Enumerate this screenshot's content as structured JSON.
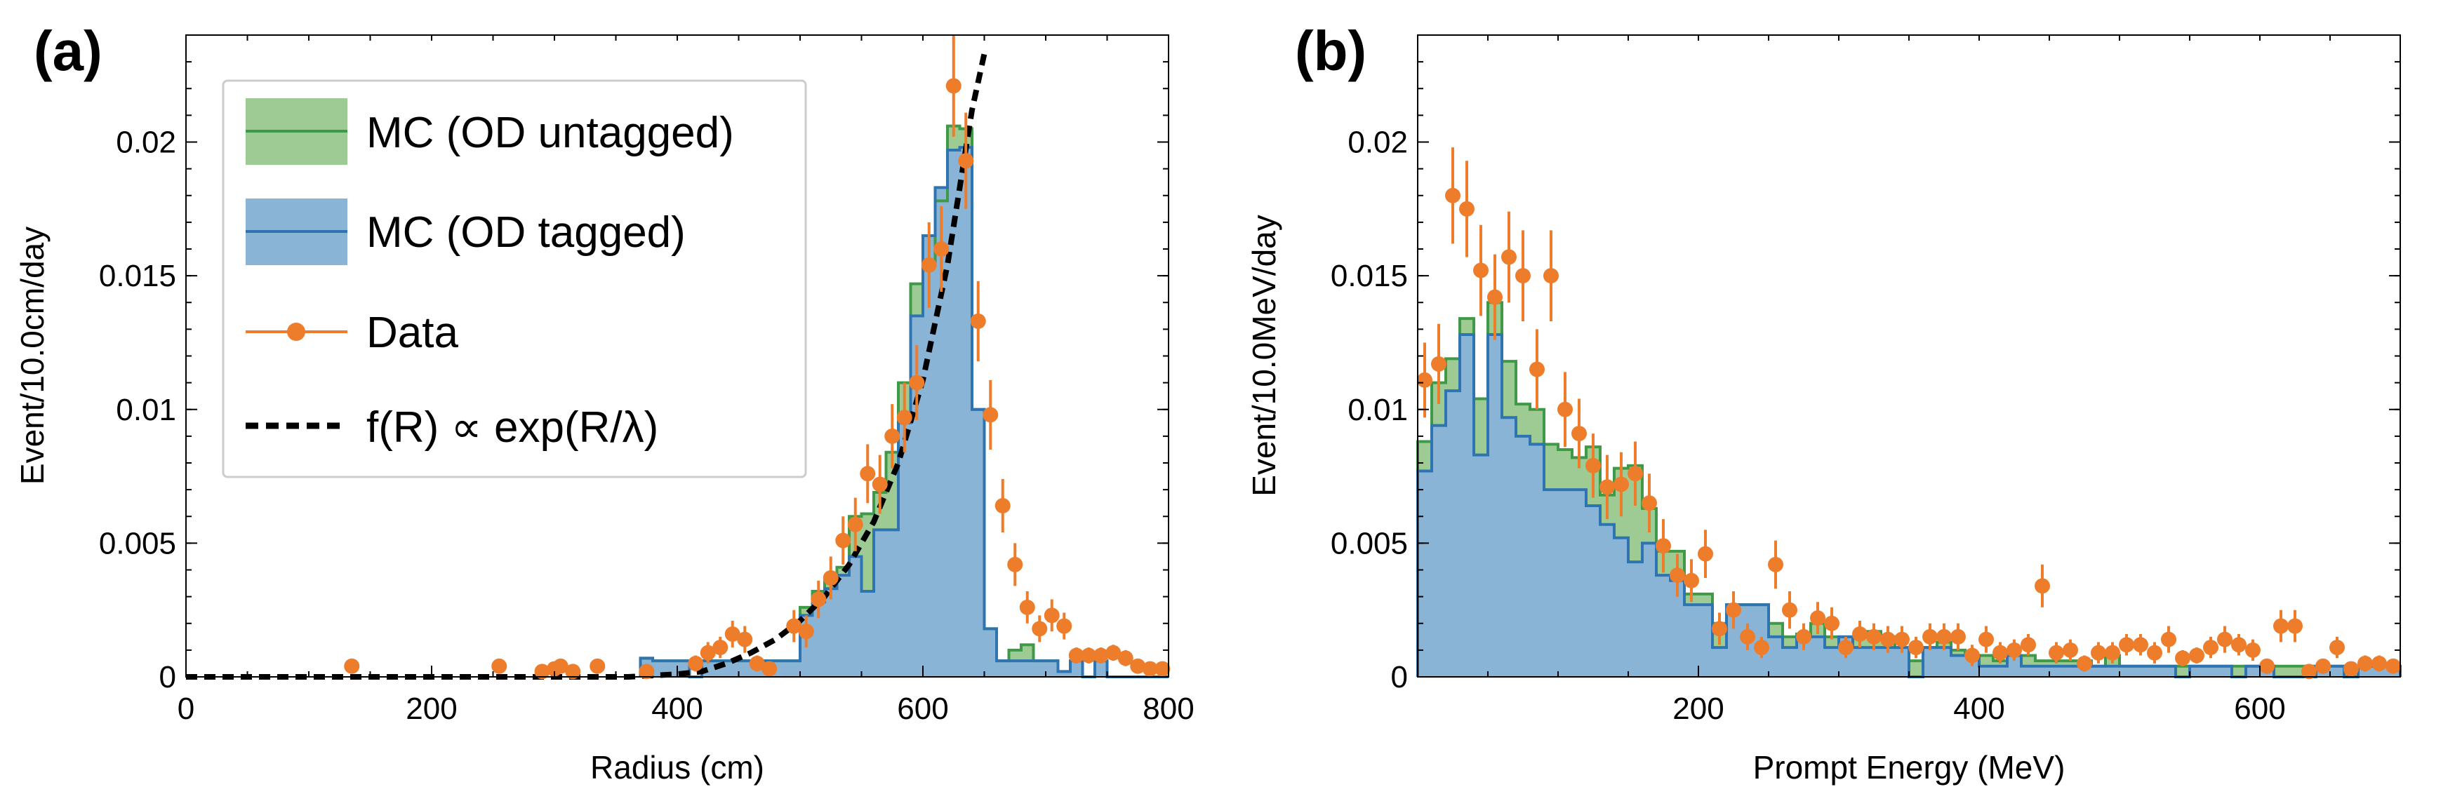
{
  "colors": {
    "untagged_fill": "#9ecb94",
    "untagged_edge": "#3e9a47",
    "tagged_fill": "#8ab4d6",
    "tagged_edge": "#2e74b0",
    "data": "#ee7d2b",
    "fit": "#000000"
  },
  "chart_data": [
    {
      "type": "histogram",
      "panel_label": "(a)",
      "xlabel": "Radius (cm)",
      "ylabel": "Event/10.0cm/day",
      "xlim": [
        0,
        800
      ],
      "ylim": [
        0,
        0.024
      ],
      "xticks": [
        0,
        200,
        400,
        600,
        800
      ],
      "xtick_labels": [
        "0",
        "200",
        "400",
        "600",
        "800"
      ],
      "yticks": [
        0,
        0.005,
        0.01,
        0.015,
        0.02
      ],
      "ytick_labels": [
        "0",
        "0.005",
        "0.01",
        "0.015",
        "0.02"
      ],
      "legend": {
        "location": "upper-left",
        "entries": [
          "MC (OD untagged)",
          "MC (OD tagged)",
          "Data",
          "f(R) ∝ exp(R/λ)"
        ]
      },
      "bin_width": 10,
      "bins": {
        "x_start": [
          370,
          380,
          390,
          400,
          410,
          420,
          430,
          440,
          450,
          460,
          470,
          480,
          490,
          500,
          510,
          520,
          530,
          540,
          550,
          560,
          570,
          580,
          590,
          600,
          610,
          620,
          630,
          640,
          650,
          660,
          670,
          680,
          690,
          700,
          710,
          720,
          730,
          740,
          750,
          760,
          770,
          780,
          790
        ],
        "tagged": [
          0.0007,
          0.0006,
          0.0006,
          0.0006,
          0,
          0.0006,
          0.0006,
          0.0006,
          0.0006,
          0.0006,
          0.0006,
          0.0006,
          0.0006,
          0.0023,
          0.0028,
          0.0033,
          0.0038,
          0.0045,
          0.0032,
          0.0055,
          0.0055,
          0.0095,
          0.0135,
          0.0165,
          0.0183,
          0.0197,
          0.0198,
          0.01,
          0.0018,
          0.0006,
          0.0006,
          0.0006,
          0.0006,
          0.0006,
          0.0002,
          0.0006,
          0,
          0.0006,
          0,
          0,
          0,
          0,
          0
        ],
        "total": [
          0.0007,
          0.0006,
          0.0006,
          0.0006,
          0,
          0.0006,
          0.0006,
          0.0006,
          0.0006,
          0.0006,
          0.0006,
          0.0006,
          0.0006,
          0.0026,
          0.0032,
          0.0036,
          0.0041,
          0.006,
          0.0061,
          0.0069,
          0.0084,
          0.011,
          0.0147,
          0.0155,
          0.0178,
          0.0206,
          0.0205,
          0.01,
          0.0018,
          0.0006,
          0.001,
          0.0012,
          0.0006,
          0.0006,
          0.0002,
          0.0006,
          0,
          0.0006,
          0,
          0,
          0,
          0,
          0
        ]
      },
      "data_points": {
        "x": [
          135,
          255,
          290,
          300,
          305,
          315,
          335,
          375,
          415,
          425,
          435,
          445,
          455,
          465,
          475,
          495,
          505,
          515,
          525,
          535,
          545,
          555,
          565,
          575,
          585,
          595,
          605,
          615,
          625,
          635,
          645,
          655,
          665,
          675,
          685,
          695,
          705,
          715,
          725,
          735,
          745,
          755,
          765,
          775,
          785,
          795
        ],
        "y": [
          0.0004,
          0.0004,
          0.0002,
          0.0003,
          0.0004,
          0.0002,
          0.0004,
          0.0002,
          0.0005,
          0.0009,
          0.0011,
          0.0016,
          0.0014,
          0.0005,
          0.0003,
          0.0019,
          0.0017,
          0.0029,
          0.0037,
          0.0051,
          0.0057,
          0.0076,
          0.0072,
          0.009,
          0.0097,
          0.011,
          0.0154,
          0.016,
          0.0221,
          0.0193,
          0.0133,
          0.0098,
          0.0064,
          0.0042,
          0.0026,
          0.0018,
          0.0023,
          0.0019,
          0.0008,
          0.0008,
          0.0008,
          0.0009,
          0.0007,
          0.0004,
          0.0003,
          0.0003
        ],
        "err": [
          0.0002,
          0.0002,
          0.0002,
          0.0002,
          0.0002,
          0.0002,
          0.0002,
          0.0002,
          0.0003,
          0.0004,
          0.0004,
          0.0005,
          0.0005,
          0.0003,
          0.0002,
          0.0006,
          0.0006,
          0.0007,
          0.0008,
          0.0009,
          0.001,
          0.0011,
          0.0011,
          0.0012,
          0.0013,
          0.0014,
          0.0016,
          0.0016,
          0.0019,
          0.0018,
          0.0015,
          0.0013,
          0.001,
          0.0008,
          0.0006,
          0.0005,
          0.0006,
          0.0005,
          0.0003,
          0.0003,
          0.0003,
          0.0003,
          0.0003,
          0.0002,
          0.0002,
          0.0002
        ]
      },
      "fit_curve": {
        "label": "f(R) ∝ exp(R/λ)",
        "x": [
          0,
          100,
          200,
          300,
          360,
          400,
          420,
          440,
          460,
          480,
          500,
          520,
          540,
          560,
          580,
          600,
          620,
          640,
          650
        ],
        "y": [
          0,
          0,
          0,
          0,
          0,
          0.0001,
          0.0002,
          0.0005,
          0.0009,
          0.0014,
          0.0021,
          0.003,
          0.0042,
          0.0058,
          0.008,
          0.0111,
          0.0154,
          0.0212,
          0.0233
        ]
      }
    },
    {
      "type": "histogram",
      "panel_label": "(b)",
      "xlabel": "Prompt Energy (MeV)",
      "ylabel": "Event/10.0MeV/day",
      "xlim": [
        0,
        700
      ],
      "ylim": [
        0,
        0.024
      ],
      "xticks": [
        200,
        400,
        600
      ],
      "xtick_labels": [
        "200",
        "400",
        "600"
      ],
      "yticks": [
        0,
        0.005,
        0.01,
        0.015,
        0.02
      ],
      "ytick_labels": [
        "0",
        "0.005",
        "0.01",
        "0.015",
        "0.02"
      ],
      "bin_width": 10,
      "bins": {
        "tagged": [
          0.0077,
          0.0094,
          0.0107,
          0.0128,
          0.0083,
          0.0128,
          0.0097,
          0.009,
          0.0087,
          0.007,
          0.007,
          0.007,
          0.0064,
          0.0057,
          0.0052,
          0.0043,
          0.005,
          0.0038,
          0.0036,
          0.0027,
          0.0027,
          0.0011,
          0.0027,
          0.0027,
          0.0027,
          0.0015,
          0.0011,
          0.0015,
          0.0015,
          0.0011,
          0.0015,
          0.0011,
          0.0011,
          0.0011,
          0.0011,
          0.0,
          0.0011,
          0.0011,
          0.0008,
          0.0008,
          0.0004,
          0.0004,
          0.0008,
          0.0004,
          0.0004,
          0.0004,
          0.0004,
          0.0004,
          0.0004,
          0.0004,
          0.0004,
          0.0004,
          0.0004,
          0.0004,
          0.0,
          0.0004,
          0.0004,
          0.0004,
          0.0,
          0.0004,
          0.0004,
          0.0,
          0.0,
          0.0,
          0.0004,
          0.0004,
          0.0,
          0.0004,
          0.0004,
          0.0004
        ],
        "total": [
          0.0088,
          0.011,
          0.0119,
          0.0134,
          0.0104,
          0.014,
          0.0118,
          0.0102,
          0.01,
          0.0087,
          0.0085,
          0.0082,
          0.0086,
          0.0068,
          0.0078,
          0.0079,
          0.0063,
          0.0047,
          0.0047,
          0.0031,
          0.0031,
          0.002,
          0.0027,
          0.0027,
          0.0027,
          0.002,
          0.0015,
          0.0016,
          0.002,
          0.0015,
          0.0015,
          0.0015,
          0.0017,
          0.0015,
          0.0011,
          0.0006,
          0.0011,
          0.0013,
          0.001,
          0.0008,
          0.0008,
          0.0006,
          0.0008,
          0.0008,
          0.0006,
          0.0006,
          0.0006,
          0.0006,
          0.0004,
          0.0008,
          0.0004,
          0.0004,
          0.0004,
          0.0004,
          0.0004,
          0.0004,
          0.0004,
          0.0004,
          0.0004,
          0.0004,
          0.0004,
          0.0004,
          0.0004,
          0.0004,
          0.0004,
          0.0004,
          0.0004,
          0.0004,
          0.0004,
          0.0004
        ]
      },
      "data_points": {
        "x": [
          5,
          15,
          25,
          35,
          45,
          55,
          65,
          75,
          85,
          95,
          105,
          115,
          125,
          135,
          145,
          155,
          165,
          175,
          185,
          195,
          205,
          215,
          225,
          235,
          245,
          255,
          265,
          275,
          285,
          295,
          305,
          315,
          325,
          335,
          345,
          355,
          365,
          375,
          385,
          395,
          405,
          415,
          425,
          435,
          445,
          455,
          465,
          475,
          485,
          495,
          505,
          515,
          525,
          535,
          545,
          555,
          565,
          575,
          585,
          595,
          605,
          615,
          625,
          635,
          645,
          655,
          665,
          675,
          685,
          695
        ],
        "y": [
          0.0111,
          0.0117,
          0.018,
          0.0175,
          0.0152,
          0.0142,
          0.0157,
          0.015,
          0.0115,
          0.015,
          0.01,
          0.0091,
          0.0079,
          0.0071,
          0.0072,
          0.0076,
          0.0065,
          0.0049,
          0.0038,
          0.0036,
          0.0046,
          0.0018,
          0.0025,
          0.0015,
          0.0011,
          0.0042,
          0.0025,
          0.0015,
          0.0022,
          0.002,
          0.0011,
          0.0016,
          0.0015,
          0.0014,
          0.0014,
          0.0011,
          0.0015,
          0.0015,
          0.0015,
          0.0008,
          0.0014,
          0.0009,
          0.001,
          0.0012,
          0.0034,
          0.0009,
          0.001,
          0.0005,
          0.0009,
          0.0009,
          0.0012,
          0.0012,
          0.0009,
          0.0014,
          0.0007,
          0.0008,
          0.0011,
          0.0014,
          0.0012,
          0.001,
          0.0004,
          0.0019,
          0.0019,
          0.0002,
          0.0004,
          0.0011,
          0.0003,
          0.0005,
          0.0005,
          0.0004
        ],
        "err": [
          0.0014,
          0.0015,
          0.0018,
          0.0018,
          0.0017,
          0.0016,
          0.0017,
          0.0017,
          0.0015,
          0.0017,
          0.0014,
          0.0013,
          0.0012,
          0.0012,
          0.0012,
          0.0012,
          0.0011,
          0.001,
          0.0008,
          0.0008,
          0.0009,
          0.0006,
          0.0007,
          0.0005,
          0.0004,
          0.0009,
          0.0007,
          0.0005,
          0.0006,
          0.0006,
          0.0004,
          0.0005,
          0.0005,
          0.0005,
          0.0005,
          0.0004,
          0.0005,
          0.0005,
          0.0005,
          0.0004,
          0.0005,
          0.0004,
          0.0004,
          0.0004,
          0.0008,
          0.0004,
          0.0004,
          0.0003,
          0.0004,
          0.0004,
          0.0004,
          0.0004,
          0.0004,
          0.0005,
          0.0003,
          0.0003,
          0.0004,
          0.0005,
          0.0004,
          0.0004,
          0.0002,
          0.0006,
          0.0006,
          0.0002,
          0.0002,
          0.0004,
          0.0002,
          0.0003,
          0.0003,
          0.0002
        ]
      }
    }
  ]
}
